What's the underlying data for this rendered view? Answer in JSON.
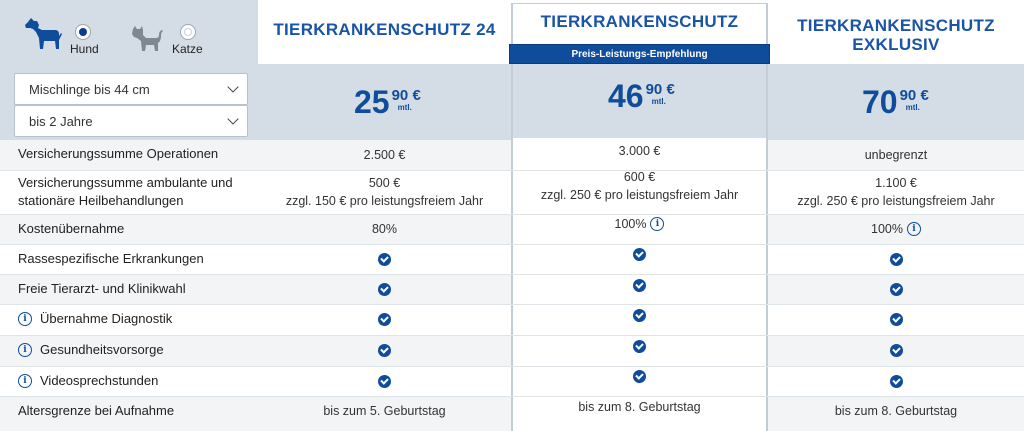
{
  "species": {
    "dog_label": "Hund",
    "cat_label": "Katze",
    "selected": "dog"
  },
  "filters": {
    "size": "Mischlinge bis 44 cm",
    "age": "bis 2 Jahre"
  },
  "plans": [
    {
      "title": "TIERKRANKENSCHUTZ 24",
      "price_main": "25",
      "price_cents": "90 €",
      "price_unit": "mtl."
    },
    {
      "title": "TIERKRANKENSCHUTZ",
      "badge": "Preis-Leistungs-Empfehlung",
      "price_main": "46",
      "price_cents": "90 €",
      "price_unit": "mtl."
    },
    {
      "title_line1": "TIERKRANKENSCHUTZ",
      "title_line2": "EXKLUSIV",
      "price_main": "70",
      "price_cents": "90 €",
      "price_unit": "mtl."
    }
  ],
  "rows": [
    {
      "label": "Versicherungssumme Operationen",
      "v1": "2.500 €",
      "v2": "3.000 €",
      "v3": "unbegrenzt"
    },
    {
      "label_line1": "Versicherungssumme ambulante und",
      "label_line2": "stationäre Heilbehandlungen",
      "v1_line1": "500 €",
      "v1_line2": "zzgl. 150 € pro leistungsfreiem Jahr",
      "v2_line1": "600 €",
      "v2_line2": "zzgl. 250 € pro leistungsfreiem Jahr",
      "v3_line1": "1.100 €",
      "v3_line2": "zzgl. 250 € pro leistungsfreiem Jahr"
    },
    {
      "label": "Kostenübernahme",
      "v1": "80%",
      "v2": "100%",
      "v3": "100%"
    },
    {
      "label": "Rassespezifische Erkrankungen"
    },
    {
      "label": "Freie Tierarzt- und Klinikwahl"
    },
    {
      "label": "Übernahme Diagnostik"
    },
    {
      "label": "Gesundheitsvorsorge"
    },
    {
      "label": "Videosprechstunden"
    },
    {
      "label": "Altersgrenze bei Aufnahme",
      "v1": "bis zum 5. Geburtstag",
      "v2": "bis zum 8. Geburtstag",
      "v3": "bis zum 8. Geburtstag"
    }
  ],
  "info_glyph": "i",
  "colors": {
    "brand_blue": "#0f4d9c",
    "title_blue": "#1a54a6",
    "header_bg": "#d4dde5"
  }
}
